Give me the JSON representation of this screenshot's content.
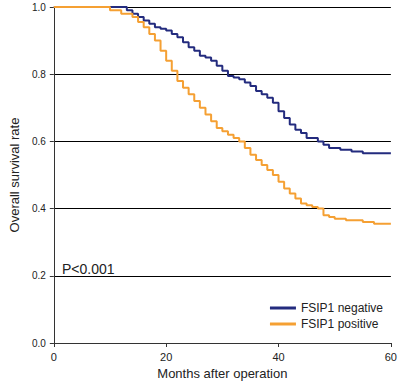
{
  "chart_data": {
    "type": "line",
    "x_label": "Months after operation",
    "y_label": "Overall survival rate",
    "annotations": [
      "P<0.001"
    ],
    "xlim": [
      0,
      60
    ],
    "xticks": [
      0,
      20,
      40,
      60
    ],
    "ylim": [
      0,
      1
    ],
    "yticks": [
      {
        "value": 0,
        "label": "0.0"
      },
      0.2,
      0.4,
      0.6,
      0.8,
      {
        "value": 1,
        "label": "1.0"
      }
    ],
    "grid": "y",
    "legend": "lower right",
    "line_style": "step",
    "series": [
      {
        "name": "FSIP1 negative",
        "color": "#232b7e",
        "x": [
          0,
          13,
          14,
          15,
          16,
          17,
          18,
          19,
          20,
          21,
          22,
          23,
          24,
          25,
          26,
          27,
          28,
          29,
          30,
          31,
          32,
          33,
          34,
          35,
          36,
          37,
          38,
          39,
          40,
          41,
          42,
          43,
          44,
          45,
          47,
          48,
          49,
          51,
          53,
          55,
          60
        ],
        "values": [
          1.0,
          0.99,
          0.98,
          0.97,
          0.96,
          0.95,
          0.94,
          0.935,
          0.93,
          0.92,
          0.91,
          0.895,
          0.88,
          0.87,
          0.855,
          0.85,
          0.84,
          0.825,
          0.81,
          0.795,
          0.79,
          0.785,
          0.775,
          0.765,
          0.75,
          0.74,
          0.73,
          0.715,
          0.69,
          0.67,
          0.65,
          0.635,
          0.625,
          0.61,
          0.6,
          0.59,
          0.58,
          0.575,
          0.57,
          0.565,
          0.565
        ]
      },
      {
        "name": "FSIP1 positive",
        "color": "#f5a033",
        "x": [
          0,
          10,
          12,
          14,
          15,
          16,
          17,
          18,
          19,
          20,
          21,
          22,
          23,
          24,
          25,
          26,
          27,
          28,
          29,
          30,
          31,
          32,
          33,
          34,
          35,
          36,
          37,
          38,
          39,
          40,
          41,
          42,
          43,
          44,
          45,
          46,
          47,
          48,
          49,
          50,
          52,
          55,
          57,
          60
        ],
        "values": [
          1.0,
          0.99,
          0.98,
          0.97,
          0.955,
          0.94,
          0.92,
          0.9,
          0.87,
          0.84,
          0.81,
          0.78,
          0.76,
          0.74,
          0.72,
          0.7,
          0.68,
          0.66,
          0.64,
          0.63,
          0.62,
          0.61,
          0.6,
          0.58,
          0.56,
          0.545,
          0.53,
          0.515,
          0.5,
          0.48,
          0.46,
          0.445,
          0.43,
          0.415,
          0.41,
          0.405,
          0.4,
          0.38,
          0.375,
          0.37,
          0.365,
          0.36,
          0.355,
          0.355
        ]
      }
    ]
  }
}
